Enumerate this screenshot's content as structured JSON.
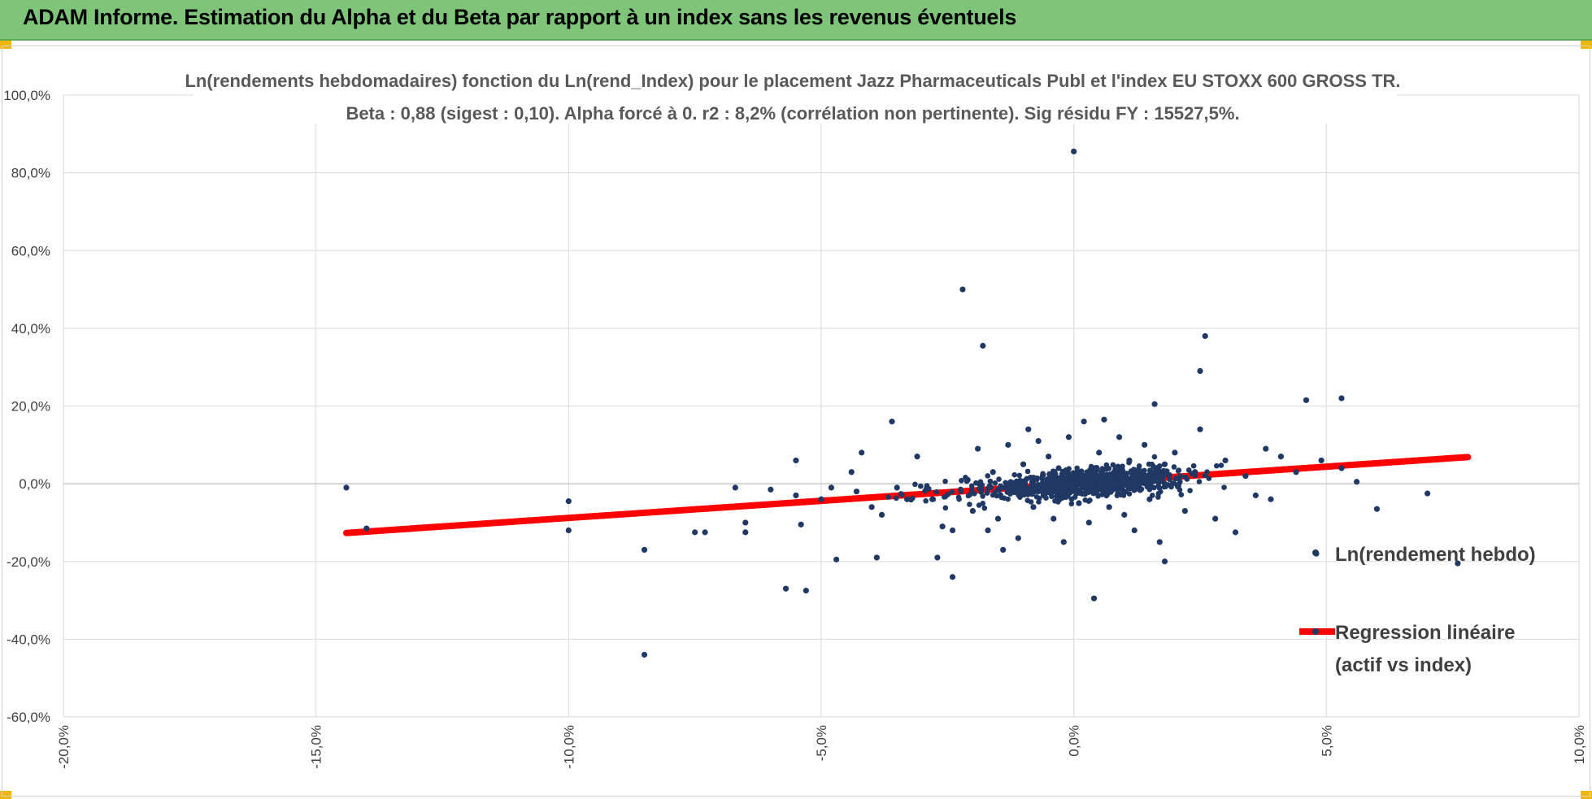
{
  "banner": {
    "title": "ADAM Informe. Estimation du Alpha et du Beta par rapport à un index sans les revenus éventuels",
    "color": "#7ec57a",
    "corner_color": "#f2b705"
  },
  "chart_data": {
    "type": "scatter",
    "title_line1": "Ln(rendements hebdomadaires) fonction du Ln(rend_Index) pour le placement Jazz Pharmaceuticals Publ et l'index EU STOXX 600 GROSS TR.",
    "title_line2": "Beta : 0,88 (sigest : 0,10).  Alpha forcé à 0. r2 : 8,2% (corrélation non pertinente). Sig résidu FY : 15527,5%.",
    "xlim": [
      -20,
      10
    ],
    "ylim": [
      -60,
      100
    ],
    "x_ticks": [
      -20,
      -15,
      -10,
      -5,
      0,
      5,
      10
    ],
    "x_tick_labels": [
      "-20,0%",
      "-15,0%",
      "-10,0%",
      "-5,0%",
      "0,0%",
      "5,0%",
      "10,0%"
    ],
    "y_ticks": [
      -60,
      -40,
      -20,
      0,
      20,
      40,
      60,
      80,
      100
    ],
    "y_tick_labels": [
      "-60,0%",
      "-40,0%",
      "-20,0%",
      "0,0%",
      "20,0%",
      "40,0%",
      "60,0%",
      "80,0%",
      "100,0%"
    ],
    "grid": true,
    "legend_position": "right",
    "series": [
      {
        "name": "Ln(rendement hebdo)",
        "kind": "scatter",
        "color": "#203864",
        "points": [
          [
            -14.4,
            -1
          ],
          [
            -14,
            -11.5
          ],
          [
            -10,
            -4.5
          ],
          [
            -10,
            -12
          ],
          [
            -8.5,
            -17
          ],
          [
            -8.5,
            -44
          ],
          [
            -7.5,
            -12.5
          ],
          [
            -7.3,
            -12.5
          ],
          [
            -6.7,
            -1
          ],
          [
            -6.5,
            -10
          ],
          [
            -6.5,
            -12.5
          ],
          [
            -6,
            -1.5
          ],
          [
            -5.7,
            -27
          ],
          [
            -5.5,
            6
          ],
          [
            -5.5,
            -3
          ],
          [
            -5.4,
            -10.5
          ],
          [
            -5.3,
            -27.5
          ],
          [
            -5,
            -4
          ],
          [
            -4.8,
            -1
          ],
          [
            -4.7,
            -19.5
          ],
          [
            -4.4,
            3
          ],
          [
            -4.3,
            -2
          ],
          [
            -4.2,
            8
          ],
          [
            -4,
            -6
          ],
          [
            -3.9,
            -19
          ],
          [
            -3.8,
            -8
          ],
          [
            -3.6,
            16
          ],
          [
            -3.5,
            -1
          ],
          [
            -3.3,
            -4
          ],
          [
            -3.1,
            7
          ],
          [
            -2.8,
            -4
          ],
          [
            -2.7,
            -19
          ],
          [
            -2.6,
            -11
          ],
          [
            -2.4,
            -24
          ],
          [
            -2.4,
            -12
          ],
          [
            -2.2,
            50
          ],
          [
            -2.1,
            1
          ],
          [
            -2,
            -7
          ],
          [
            -1.9,
            9
          ],
          [
            -1.8,
            35.5
          ],
          [
            -1.7,
            -12
          ],
          [
            -1.6,
            3
          ],
          [
            -1.5,
            -9
          ],
          [
            -1.4,
            -17
          ],
          [
            -1.3,
            10
          ],
          [
            -1.1,
            -14
          ],
          [
            -1,
            5
          ],
          [
            -0.9,
            14
          ],
          [
            -0.8,
            -6
          ],
          [
            -0.7,
            11
          ],
          [
            -0.6,
            -3
          ],
          [
            -0.5,
            7
          ],
          [
            -0.4,
            -9
          ],
          [
            -0.3,
            4
          ],
          [
            -0.2,
            -15
          ],
          [
            -0.1,
            12
          ],
          [
            0,
            85.5
          ],
          [
            0.1,
            -5
          ],
          [
            0.2,
            16
          ],
          [
            0.3,
            -10
          ],
          [
            0.4,
            -29.5
          ],
          [
            0.5,
            8
          ],
          [
            0.6,
            16.5
          ],
          [
            0.7,
            -6
          ],
          [
            0.8,
            3
          ],
          [
            0.9,
            12
          ],
          [
            1,
            -8
          ],
          [
            1.1,
            6
          ],
          [
            1.2,
            -12
          ],
          [
            1.3,
            2
          ],
          [
            1.4,
            10
          ],
          [
            1.5,
            -4
          ],
          [
            1.6,
            20.5
          ],
          [
            1.7,
            -15
          ],
          [
            1.8,
            5
          ],
          [
            1.8,
            -20
          ],
          [
            2,
            8
          ],
          [
            2.2,
            -7
          ],
          [
            2.4,
            3
          ],
          [
            2.5,
            29
          ],
          [
            2.6,
            38
          ],
          [
            2.5,
            14
          ],
          [
            2.8,
            -9
          ],
          [
            3,
            6
          ],
          [
            3.2,
            -12.5
          ],
          [
            3.4,
            2
          ],
          [
            3.6,
            -3
          ],
          [
            3.8,
            9
          ],
          [
            3.9,
            -4
          ],
          [
            4.1,
            7
          ],
          [
            4.4,
            3
          ],
          [
            4.6,
            21.5
          ],
          [
            4.8,
            -18
          ],
          [
            4.9,
            6
          ],
          [
            5.3,
            22
          ],
          [
            5.3,
            4
          ],
          [
            5.6,
            0.5
          ],
          [
            6,
            -6.5
          ],
          [
            7,
            -2.5
          ],
          [
            7.6,
            -20.5
          ]
        ]
      },
      {
        "name": "Regression linéaire (actif vs index)",
        "name_line1": "Regression linéaire",
        "name_line2": "(actif vs index)",
        "kind": "line",
        "color": "#ff0000",
        "x": [
          -14.4,
          7.8
        ],
        "y": [
          -12.67,
          6.86
        ]
      }
    ]
  }
}
